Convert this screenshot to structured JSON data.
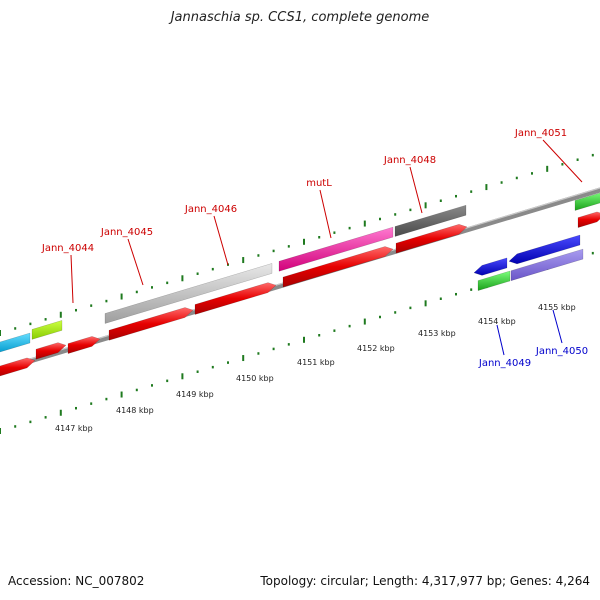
{
  "title": "Jannaschia sp. CCS1, complete genome",
  "footer": {
    "accession": "Accession: NC_007802",
    "summary": "Topology: circular; Length: 4,317,977 bp; Genes: 4,264"
  },
  "colors": {
    "backbone": "#8a8a8a",
    "tick": "#1f7a1f",
    "gene_label": "#cc0000",
    "gene_label_reverse": "#0000cc"
  },
  "ruler": [
    "4147 kbp",
    "4148 kbp",
    "4149 kbp",
    "4150 kbp",
    "4151 kbp",
    "4152 kbp",
    "4153 kbp",
    "4154 kbp",
    "4155 kbp"
  ],
  "genes": {
    "forward": [
      "Jann_4044",
      "Jann_4045",
      "Jann_4046",
      "mutL",
      "Jann_4048",
      "Jann_4051"
    ],
    "reverse": [
      "Jann_4049",
      "Jann_4050"
    ]
  }
}
